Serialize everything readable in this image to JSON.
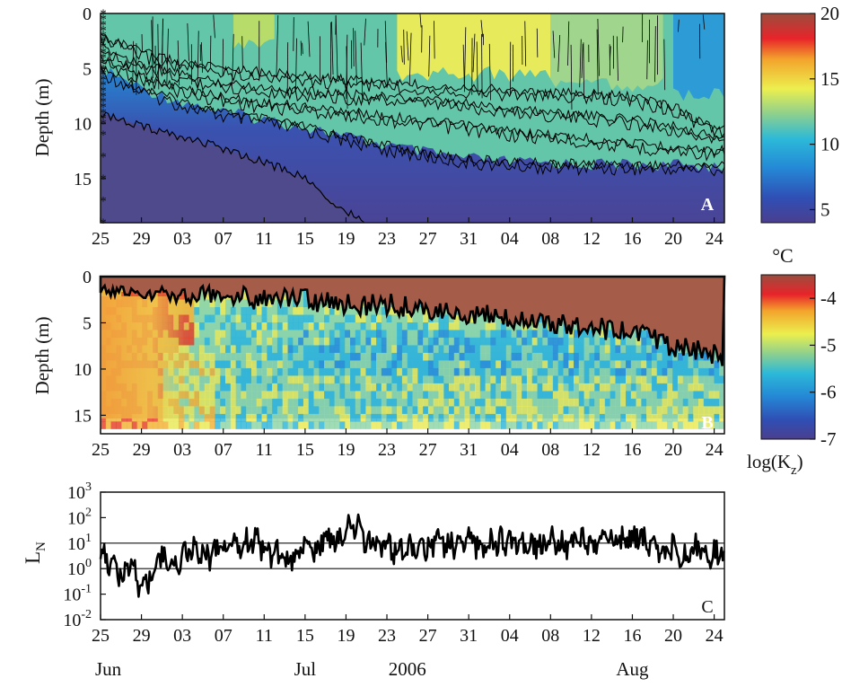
{
  "figure": {
    "date_ticks": [
      "25",
      "29",
      "03",
      "07",
      "11",
      "15",
      "19",
      "23",
      "27",
      "31",
      "04",
      "08",
      "12",
      "16",
      "20",
      "24"
    ],
    "date_tick_days": [
      0,
      4,
      8,
      12,
      16,
      20,
      24,
      28,
      32,
      36,
      40,
      44,
      48,
      52,
      56,
      60
    ],
    "month_labels": [
      {
        "text": "Jun",
        "day": 0
      },
      {
        "text": "Jul",
        "day": 20
      },
      {
        "text": "2006",
        "day": 30
      },
      {
        "text": "Aug",
        "day": 52
      }
    ]
  },
  "chart_data": [
    {
      "id": "A",
      "type": "heatmap",
      "panel_label": "A",
      "ylabel": "Depth (m)",
      "yticks": [
        0,
        5,
        10,
        15
      ],
      "ylim": [
        0,
        19
      ],
      "colorbar": {
        "ticks": [
          20,
          15,
          10,
          5
        ],
        "range": [
          4,
          20
        ],
        "unit": "°C"
      },
      "contour_isotherms": [
        {
          "level": 6,
          "depth": [
            5.0,
            6.8,
            8.0,
            9.0,
            9.6,
            10.3,
            11.2,
            12.0,
            12.7,
            13.2,
            13.5,
            13.6,
            13.7,
            13.7,
            13.8,
            13.8
          ]
        },
        {
          "level": 8,
          "depth": [
            4.0,
            5.6,
            6.8,
            7.6,
            8.1,
            8.5,
            8.9,
            9.3,
            9.8,
            10.2,
            10.7,
            11.0,
            11.4,
            11.8,
            12.1,
            12.4
          ]
        },
        {
          "level": 10,
          "depth": [
            3.0,
            4.6,
            5.6,
            6.3,
            6.7,
            7.0,
            7.3,
            7.6,
            7.9,
            8.2,
            8.6,
            8.9,
            9.3,
            9.6,
            10.2,
            11.2
          ]
        },
        {
          "level": 12,
          "depth": [
            2.0,
            3.5,
            4.5,
            5.0,
            5.3,
            5.7,
            6.0,
            6.3,
            6.5,
            6.7,
            7.0,
            7.2,
            7.3,
            7.6,
            8.4,
            10.5
          ]
        }
      ],
      "cold_boundary_line": {
        "day": [
          0,
          4,
          8,
          12,
          16,
          20,
          22,
          24,
          26
        ],
        "depth": [
          9.0,
          10.2,
          11.2,
          12.3,
          13.5,
          15.0,
          16.5,
          18.0,
          19.0
        ]
      }
    },
    {
      "id": "B",
      "type": "heatmap",
      "panel_label": "B",
      "ylabel": "Depth (m)",
      "yticks": [
        0,
        5,
        10,
        15
      ],
      "ylim": [
        0,
        17
      ],
      "colorbar": {
        "ticks": [
          -4,
          -5,
          -6,
          -7
        ],
        "range": [
          -7,
          -3.5
        ],
        "label_main": "log(K",
        "label_sub": "z",
        "label_tail": ")"
      },
      "mixed_layer_depth": {
        "day": [
          0,
          4,
          8,
          12,
          16,
          20,
          24,
          28,
          32,
          36,
          40,
          44,
          48,
          52,
          56,
          60
        ],
        "depth": [
          1.5,
          1.8,
          2.0,
          2.0,
          2.5,
          2.5,
          3.0,
          3.0,
          3.5,
          4.0,
          4.5,
          5.0,
          5.5,
          6.0,
          7.5,
          8.5
        ]
      }
    },
    {
      "id": "C",
      "type": "line",
      "panel_label": "C",
      "ylabel_main": "L",
      "ylabel_sub": "N",
      "yscale": "log",
      "ylim_exp": [
        -2,
        3
      ],
      "yticks_exp": [
        -2,
        -1,
        0,
        1,
        2,
        3
      ],
      "reference_lines": [
        1,
        10
      ],
      "series_log10": [
        0.5,
        0.2,
        -0.3,
        0.1,
        -0.8,
        -0.2,
        0.6,
        0.2,
        0.5,
        0.8,
        0.6,
        0.5,
        0.7,
        0.8,
        0.9,
        1.2,
        0.8,
        0.6,
        0.3,
        0.6,
        1.0,
        0.7,
        1.3,
        1.0,
        1.6,
        1.7,
        1.0,
        1.1,
        0.8,
        0.8,
        0.7,
        0.8,
        0.9,
        1.1,
        1.0,
        0.9,
        1.1,
        0.9,
        1.0,
        1.1,
        1.0,
        1.2,
        0.9,
        0.8,
        1.1,
        0.9,
        1.0,
        1.1,
        0.9,
        1.1,
        1.0,
        1.2,
        1.3,
        1.1,
        0.8,
        0.6,
        0.9,
        0.4,
        0.8,
        0.7,
        0.6
      ]
    }
  ]
}
